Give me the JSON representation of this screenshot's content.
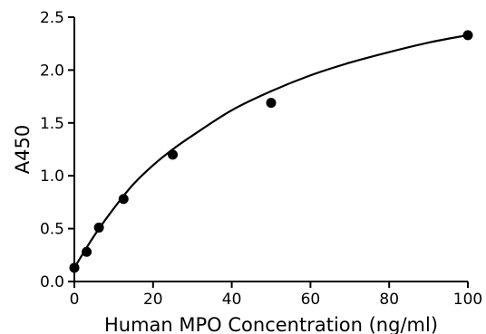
{
  "chart_data": {
    "type": "scatter",
    "title": "",
    "xlabel": "Human MPO Concentration (ng/ml)",
    "ylabel": "A450",
    "xlim": [
      0,
      100
    ],
    "ylim": [
      0,
      2.5
    ],
    "x_ticks": [
      0,
      20,
      40,
      60,
      80,
      100
    ],
    "y_ticks": [
      0.0,
      0.5,
      1.0,
      1.5,
      2.0,
      2.5
    ],
    "x_tick_labels": [
      "0",
      "20",
      "40",
      "60",
      "80",
      "100"
    ],
    "y_tick_labels": [
      "0.0",
      "0.5",
      "1.0",
      "1.5",
      "2.0",
      "2.5"
    ],
    "grid": false,
    "legend": "none",
    "series": [
      {
        "x": [
          0,
          3.125,
          6.25,
          12.5,
          25,
          50,
          100
        ],
        "y": [
          0.13,
          0.28,
          0.51,
          0.78,
          1.2,
          1.69,
          2.33
        ],
        "marker": "circle",
        "color": "#000000"
      }
    ],
    "fit_curve": {
      "x": [
        0,
        5,
        10,
        15,
        20,
        25,
        30,
        40,
        50,
        60,
        70,
        80,
        90,
        100
      ],
      "y": [
        0.13,
        0.43,
        0.69,
        0.92,
        1.1,
        1.25,
        1.38,
        1.62,
        1.8,
        1.95,
        2.07,
        2.17,
        2.26,
        2.33
      ],
      "color": "#000000"
    }
  }
}
